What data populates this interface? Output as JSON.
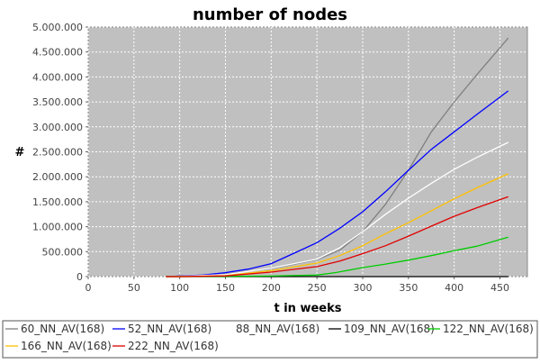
{
  "chart_data": {
    "type": "line",
    "title": "number of nodes",
    "xlabel": "t in weeks",
    "ylabel": "#",
    "xlim": [
      0,
      480
    ],
    "ylim": [
      0,
      5000000
    ],
    "xticks": [
      0,
      50,
      100,
      150,
      200,
      250,
      300,
      350,
      400,
      450
    ],
    "yticks": [
      0,
      500000,
      1000000,
      1500000,
      2000000,
      2500000,
      3000000,
      3500000,
      4000000,
      4500000,
      5000000
    ],
    "xtick_labels": [
      "0",
      "50",
      "100",
      "150",
      "200",
      "250",
      "300",
      "350",
      "400",
      "450"
    ],
    "ytick_labels": [
      "0",
      "500.000",
      "1.000.000",
      "1.500.000",
      "2.000.000",
      "2.500.000",
      "3.000.000",
      "3.500.000",
      "4.000.000",
      "4.500.000",
      "5.000.000"
    ],
    "grid": true,
    "background_color": "#c0c0c0",
    "legend_placement": "bottom",
    "series": [
      {
        "name": "60_NN_AV(168)",
        "color": "#808080",
        "x": [
          85,
          100,
          150,
          200,
          250,
          275,
          300,
          325,
          350,
          375,
          400,
          425,
          459
        ],
        "y": [
          0,
          10000,
          50000,
          160000,
          340000,
          530000,
          900000,
          1450000,
          2130000,
          2900000,
          3500000,
          4050000,
          4780000
        ]
      },
      {
        "name": "52_NN_AV(168)",
        "color": "#0000ff",
        "x": [
          85,
          100,
          125,
          150,
          175,
          200,
          225,
          250,
          275,
          300,
          325,
          350,
          375,
          400,
          425,
          459
        ],
        "y": [
          0,
          10000,
          30000,
          80000,
          150000,
          260000,
          470000,
          680000,
          970000,
          1300000,
          1700000,
          2130000,
          2550000,
          2900000,
          3250000,
          3720000
        ]
      },
      {
        "name": "88_NN_AV(168)",
        "color": "#ffffff",
        "x": [
          85,
          100,
          150,
          200,
          250,
          275,
          300,
          325,
          350,
          375,
          400,
          425,
          459
        ],
        "y": [
          0,
          5000,
          40000,
          170000,
          350000,
          580000,
          900000,
          1250000,
          1570000,
          1870000,
          2150000,
          2390000,
          2690000
        ]
      },
      {
        "name": "109_NN_AV(168)",
        "color": "#000000",
        "x": [
          85,
          100,
          150,
          200,
          250,
          300,
          350,
          400,
          459
        ],
        "y": [
          0,
          0,
          0,
          0,
          0,
          0,
          0,
          0,
          0
        ]
      },
      {
        "name": "122_NN_AV(168)",
        "color": "#00cc00",
        "x": [
          85,
          100,
          150,
          200,
          250,
          270,
          300,
          325,
          350,
          375,
          400,
          425,
          459
        ],
        "y": [
          0,
          0,
          5000,
          10000,
          30000,
          80000,
          180000,
          250000,
          330000,
          420000,
          520000,
          610000,
          790000
        ]
      },
      {
        "name": "166_NN_AV(168)",
        "color": "#ffc000",
        "x": [
          85,
          100,
          150,
          200,
          250,
          275,
          300,
          325,
          350,
          375,
          400,
          425,
          459
        ],
        "y": [
          0,
          0,
          20000,
          120000,
          270000,
          420000,
          620000,
          860000,
          1080000,
          1320000,
          1560000,
          1780000,
          2060000
        ]
      },
      {
        "name": "222_NN_AV(168)",
        "color": "#e00000",
        "x": [
          85,
          100,
          150,
          200,
          250,
          275,
          300,
          325,
          350,
          375,
          400,
          425,
          459
        ],
        "y": [
          0,
          0,
          15000,
          90000,
          200000,
          310000,
          460000,
          620000,
          810000,
          1010000,
          1210000,
          1380000,
          1600000
        ]
      }
    ],
    "legend_rows": [
      [
        "60_NN_AV(168)",
        "52_NN_AV(168)",
        "88_NN_AV(168)",
        "109_NN_AV(168)",
        "122_NN_AV(168)"
      ],
      [
        "166_NN_AV(168)",
        "222_NN_AV(168)"
      ]
    ]
  }
}
